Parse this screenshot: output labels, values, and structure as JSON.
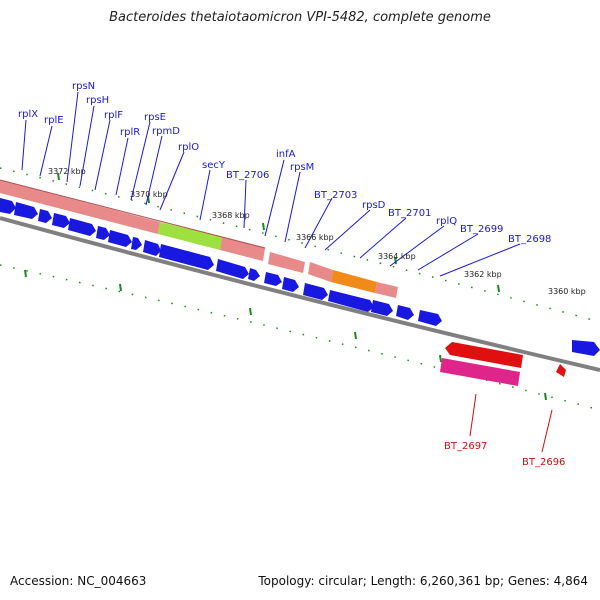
{
  "title": "Bacteroides thetaiotaomicron VPI-5482, complete genome",
  "footer": {
    "accession": "Accession: NC_004663",
    "summary": "Topology: circular; Length: 6,260,361 bp; Genes: 4,864"
  },
  "ticks": [
    "3372 kbp",
    "3370 kbp",
    "3368 kbp",
    "3366 kbp",
    "3364 kbp",
    "3362 kbp",
    "3360 kbp"
  ],
  "gene_labels_forward": [
    "rplX",
    "rplE",
    "rpsN",
    "rpsH",
    "rplF",
    "rplR",
    "rpsE",
    "rpmD",
    "rplO",
    "secY",
    "BT_2706",
    "infA",
    "rpsM",
    "BT_2703",
    "rpsD",
    "BT_2701",
    "rplQ",
    "BT_2699",
    "BT_2698"
  ],
  "gene_labels_reverse": [
    "BT_2697",
    "BT_2696"
  ],
  "colors": {
    "blue_gene": "#1818e0",
    "red_gene": "#e01010",
    "pink_gene": "#e0258a",
    "salmon_band": "#e88a8a",
    "green_band": "#9ee040",
    "orange_band": "#f08a18",
    "backbone": "#808080",
    "tick_green": "#1a8a1a"
  }
}
